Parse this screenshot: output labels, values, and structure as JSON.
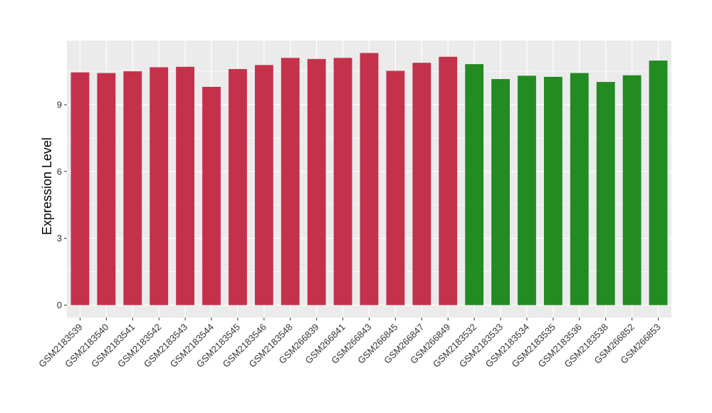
{
  "chart_data": {
    "type": "bar",
    "ylabel": "Expression Level",
    "xlabel": "",
    "ylim": [
      0,
      12
    ],
    "yticks": [
      0,
      3,
      6,
      9
    ],
    "grid": true,
    "categories": [
      "GSM2183539",
      "GSM2183540",
      "GSM2183541",
      "GSM2183542",
      "GSM2183543",
      "GSM2183544",
      "GSM2183545",
      "GSM2183546",
      "GSM2183548",
      "GSM266839",
      "GSM266841",
      "GSM266843",
      "GSM266845",
      "GSM266847",
      "GSM266849",
      "GSM2183532",
      "GSM2183533",
      "GSM2183534",
      "GSM2183535",
      "GSM2183536",
      "GSM2183538",
      "GSM266852",
      "GSM266853"
    ],
    "values": [
      10.45,
      10.42,
      10.5,
      10.68,
      10.7,
      9.8,
      10.6,
      10.78,
      11.1,
      11.05,
      11.1,
      11.32,
      10.52,
      10.88,
      11.15,
      10.82,
      10.15,
      10.3,
      10.25,
      10.42,
      10.02,
      10.32,
      10.98
    ],
    "bar_colors": [
      "#c4314b",
      "#c4314b",
      "#c4314b",
      "#c4314b",
      "#c4314b",
      "#c4314b",
      "#c4314b",
      "#c4314b",
      "#c4314b",
      "#c4314b",
      "#c4314b",
      "#c4314b",
      "#c4314b",
      "#c4314b",
      "#c4314b",
      "#228b22",
      "#228b22",
      "#228b22",
      "#228b22",
      "#228b22",
      "#228b22",
      "#228b22",
      "#228b22"
    ],
    "panel_background": "#ebebeb",
    "grid_color": "#ffffff"
  }
}
